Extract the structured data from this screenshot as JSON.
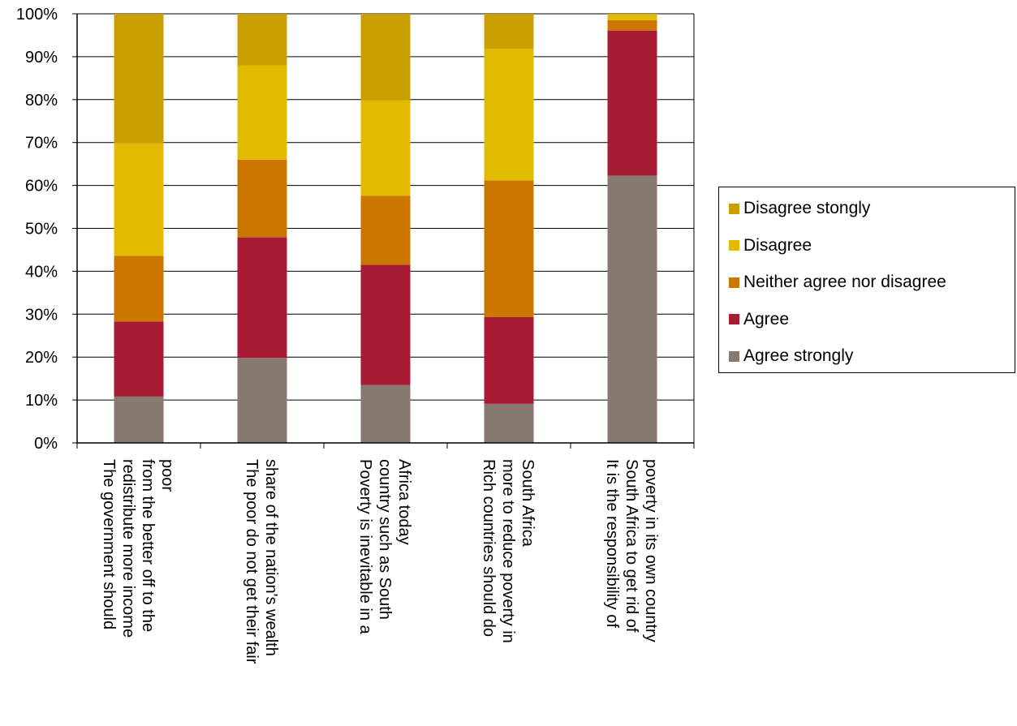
{
  "chart_data": {
    "type": "bar",
    "stacked": true,
    "percent": true,
    "ylim": [
      0,
      100
    ],
    "y_ticks": [
      "0%",
      "10%",
      "20%",
      "30%",
      "40%",
      "50%",
      "60%",
      "70%",
      "80%",
      "90%",
      "100%"
    ],
    "grid": true,
    "legend_position": "right",
    "categories": [
      [
        "The government should",
        "redistribute more income",
        "from the better off to the",
        "poor"
      ],
      [
        "The poor do not get their fair",
        "share of the nation's wealth"
      ],
      [
        "Poverty is inevitable in a",
        "country such as South",
        "Africa today"
      ],
      [
        "Rich countries should do",
        "more to reduce poverty in",
        "South Africa"
      ],
      [
        "It is the responsibility of",
        "South Africa to get rid of",
        "poverty in its own country"
      ]
    ],
    "series": [
      {
        "name": "Agree strongly",
        "color": "#857970",
        "values": [
          10.8,
          19.8,
          13.5,
          9.1,
          62.3
        ]
      },
      {
        "name": "Agree",
        "color": "#A81B34",
        "values": [
          17.5,
          28.1,
          28.0,
          20.2,
          33.8
        ]
      },
      {
        "name": "Neither agree nor disagree",
        "color": "#CC7700",
        "values": [
          15.3,
          18.1,
          16.1,
          31.9,
          2.4
        ]
      },
      {
        "name": "Disagree",
        "color": "#E2BA00",
        "values": [
          26.2,
          22.0,
          22.3,
          30.6,
          1.4
        ]
      },
      {
        "name": "Disagree stongly",
        "color": "#C9A000",
        "values": [
          30.2,
          12.0,
          20.1,
          8.2,
          0.1
        ]
      }
    ]
  }
}
